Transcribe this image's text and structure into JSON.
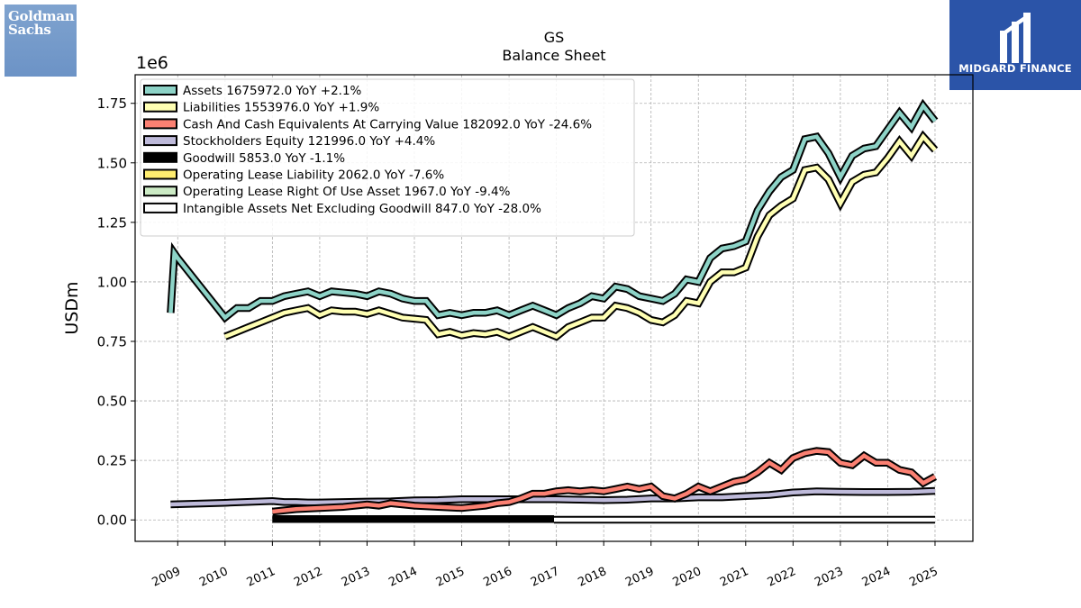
{
  "logos": {
    "left_lines": [
      "Goldman",
      "Sachs"
    ],
    "right_text": "MIDGARD FINANCE"
  },
  "chart_data": {
    "type": "line",
    "title": "GS",
    "subtitle": "Balance  Sheet",
    "ylabel": "USDm",
    "scale_label": "1e6",
    "ylim": [
      -0.09,
      1.87
    ],
    "xlim": [
      2008.1,
      2025.8
    ],
    "grid": true,
    "legend_position": "top-left",
    "yticks": [
      0.0,
      0.25,
      0.5,
      0.75,
      1.0,
      1.25,
      1.5,
      1.75
    ],
    "ytick_labels": [
      "0.00",
      "0.25",
      "0.50",
      "0.75",
      "1.00",
      "1.25",
      "1.50",
      "1.75"
    ],
    "xticks": [
      2009,
      2010,
      2011,
      2012,
      2013,
      2014,
      2015,
      2016,
      2017,
      2018,
      2019,
      2020,
      2021,
      2022,
      2023,
      2024,
      2025
    ],
    "xtick_labels": [
      "2009",
      "2010",
      "2011",
      "2012",
      "2013",
      "2014",
      "2015",
      "2016",
      "2017",
      "2018",
      "2019",
      "2020",
      "2021",
      "2022",
      "2023",
      "2024",
      "2025"
    ],
    "series": [
      {
        "name": "Assets",
        "legend": "Assets  1675972.0 YoY +2.1%",
        "color": "#8dd3c7",
        "x": [
          2008.85,
          2008.93,
          2009.0,
          2010.0,
          2010.25,
          2010.5,
          2010.75,
          2011.0,
          2011.25,
          2011.5,
          2011.75,
          2012.0,
          2012.25,
          2012.5,
          2012.75,
          2013.0,
          2013.25,
          2013.5,
          2013.75,
          2014.0,
          2014.25,
          2014.5,
          2014.75,
          2015.0,
          2015.25,
          2015.5,
          2015.75,
          2016.0,
          2016.25,
          2016.5,
          2016.75,
          2017.0,
          2017.25,
          2017.5,
          2017.75,
          2018.0,
          2018.25,
          2018.5,
          2018.75,
          2019.0,
          2019.25,
          2019.5,
          2019.75,
          2020.0,
          2020.25,
          2020.5,
          2020.75,
          2021.0,
          2021.25,
          2021.5,
          2021.75,
          2022.0,
          2022.25,
          2022.5,
          2022.75,
          2023.0,
          2023.25,
          2023.5,
          2023.75,
          2024.0,
          2024.25,
          2024.5,
          2024.75,
          2025.0
        ],
        "values": [
          0.87,
          1.12,
          1.1,
          0.85,
          0.89,
          0.89,
          0.92,
          0.92,
          0.94,
          0.95,
          0.96,
          0.94,
          0.96,
          0.955,
          0.95,
          0.94,
          0.96,
          0.95,
          0.93,
          0.92,
          0.92,
          0.86,
          0.87,
          0.86,
          0.87,
          0.87,
          0.88,
          0.86,
          0.88,
          0.9,
          0.88,
          0.86,
          0.89,
          0.91,
          0.94,
          0.93,
          0.98,
          0.97,
          0.94,
          0.93,
          0.92,
          0.95,
          1.01,
          1.0,
          1.1,
          1.14,
          1.15,
          1.17,
          1.3,
          1.38,
          1.44,
          1.47,
          1.6,
          1.61,
          1.54,
          1.44,
          1.53,
          1.56,
          1.57,
          1.64,
          1.71,
          1.65,
          1.74,
          1.676
        ]
      },
      {
        "name": "Liabilities",
        "legend": "Liabilities  1553976.0 YoY +1.9%",
        "color": "#ffffb3",
        "x": [
          2010.0,
          2010.25,
          2010.5,
          2010.75,
          2011.0,
          2011.25,
          2011.5,
          2011.75,
          2012.0,
          2012.25,
          2012.5,
          2012.75,
          2013.0,
          2013.25,
          2013.5,
          2013.75,
          2014.0,
          2014.25,
          2014.5,
          2014.75,
          2015.0,
          2015.25,
          2015.5,
          2015.75,
          2016.0,
          2016.25,
          2016.5,
          2016.75,
          2017.0,
          2017.25,
          2017.5,
          2017.75,
          2018.0,
          2018.25,
          2018.5,
          2018.75,
          2019.0,
          2019.25,
          2019.5,
          2019.75,
          2020.0,
          2020.25,
          2020.5,
          2020.75,
          2021.0,
          2021.25,
          2021.5,
          2021.75,
          2022.0,
          2022.25,
          2022.5,
          2022.75,
          2023.0,
          2023.25,
          2023.5,
          2023.75,
          2024.0,
          2024.25,
          2024.5,
          2024.75,
          2025.0
        ],
        "values": [
          0.77,
          0.79,
          0.81,
          0.83,
          0.85,
          0.87,
          0.88,
          0.89,
          0.86,
          0.88,
          0.875,
          0.875,
          0.865,
          0.88,
          0.865,
          0.85,
          0.845,
          0.84,
          0.78,
          0.79,
          0.775,
          0.785,
          0.78,
          0.79,
          0.77,
          0.79,
          0.81,
          0.79,
          0.77,
          0.81,
          0.83,
          0.85,
          0.85,
          0.9,
          0.89,
          0.87,
          0.84,
          0.83,
          0.86,
          0.92,
          0.91,
          1.0,
          1.04,
          1.04,
          1.06,
          1.19,
          1.28,
          1.32,
          1.35,
          1.47,
          1.48,
          1.43,
          1.33,
          1.42,
          1.45,
          1.46,
          1.52,
          1.59,
          1.53,
          1.61,
          1.554
        ]
      },
      {
        "name": "Cash And Cash Equivalents At Carrying Value",
        "legend": "Cash And Cash Equivalents At Carrying Value  182092.0 YoY -24.6%",
        "color": "#fb8072",
        "x": [
          2011.0,
          2011.5,
          2012.0,
          2012.5,
          2013.0,
          2013.25,
          2013.5,
          2013.75,
          2014.0,
          2014.5,
          2015.0,
          2015.25,
          2015.5,
          2015.75,
          2016.0,
          2016.25,
          2016.5,
          2016.75,
          2017.0,
          2017.25,
          2017.5,
          2017.75,
          2018.0,
          2018.25,
          2018.5,
          2018.75,
          2019.0,
          2019.25,
          2019.5,
          2019.75,
          2020.0,
          2020.25,
          2020.5,
          2020.75,
          2021.0,
          2021.25,
          2021.5,
          2021.75,
          2022.0,
          2022.25,
          2022.5,
          2022.75,
          2023.0,
          2023.25,
          2023.5,
          2023.75,
          2024.0,
          2024.25,
          2024.5,
          2024.75,
          2025.0
        ],
        "values": [
          0.035,
          0.045,
          0.05,
          0.055,
          0.065,
          0.06,
          0.07,
          0.065,
          0.06,
          0.055,
          0.05,
          0.055,
          0.06,
          0.07,
          0.075,
          0.09,
          0.11,
          0.11,
          0.12,
          0.125,
          0.12,
          0.125,
          0.12,
          0.13,
          0.14,
          0.13,
          0.14,
          0.1,
          0.09,
          0.11,
          0.14,
          0.12,
          0.14,
          0.16,
          0.17,
          0.2,
          0.24,
          0.21,
          0.26,
          0.28,
          0.29,
          0.285,
          0.24,
          0.23,
          0.27,
          0.24,
          0.24,
          0.21,
          0.2,
          0.155,
          0.182
        ]
      },
      {
        "name": "Stockholders Equity",
        "legend": "Stockholders Equity  121996.0 YoY +4.4%",
        "color": "#bebada",
        "x": [
          2008.85,
          2010.0,
          2011.0,
          2011.25,
          2011.5,
          2011.75,
          2012.0,
          2012.5,
          2013.0,
          2013.5,
          2014.0,
          2014.5,
          2015.0,
          2015.5,
          2016.0,
          2016.5,
          2017.0,
          2017.5,
          2018.0,
          2018.5,
          2019.0,
          2019.5,
          2020.0,
          2020.5,
          2021.0,
          2021.5,
          2022.0,
          2022.5,
          2023.0,
          2023.5,
          2024.0,
          2024.5,
          2025.0
        ],
        "values": [
          0.065,
          0.072,
          0.079,
          0.075,
          0.075,
          0.073,
          0.073,
          0.075,
          0.077,
          0.078,
          0.082,
          0.083,
          0.087,
          0.087,
          0.087,
          0.087,
          0.087,
          0.085,
          0.083,
          0.085,
          0.09,
          0.09,
          0.095,
          0.095,
          0.1,
          0.105,
          0.115,
          0.12,
          0.118,
          0.117,
          0.117,
          0.118,
          0.122
        ]
      },
      {
        "name": "Goodwill",
        "legend": "Goodwill  5853.0 YoY -1.1%",
        "color": "#000000",
        "x": [
          2011.0,
          2013.0,
          2015.0,
          2016.95
        ],
        "values": [
          0.004,
          0.004,
          0.004,
          0.004
        ]
      },
      {
        "name": "Operating Lease Liability",
        "legend": "Operating Lease Liability  2062.0 YoY -7.6%",
        "color": "#ffed6f",
        "x": [],
        "values": []
      },
      {
        "name": "Operating Lease Right Of Use Asset",
        "legend": "Operating Lease Right Of Use Asset  1967.0 YoY -9.4%",
        "color": "#ccebc5",
        "x": [],
        "values": []
      },
      {
        "name": "Intangible Assets Net Excluding Goodwill",
        "legend": "Intangible Assets Net Excluding Goodwill  847.0 YoY -28.0%",
        "color": "#ffffff",
        "x": [
          2016.95,
          2018.0,
          2019.0,
          2020.0,
          2021.0,
          2022.0,
          2023.0,
          2024.0,
          2025.0
        ],
        "values": [
          0.001,
          0.001,
          0.001,
          0.001,
          0.001,
          0.001,
          0.001,
          0.001,
          0.001
        ]
      }
    ]
  }
}
